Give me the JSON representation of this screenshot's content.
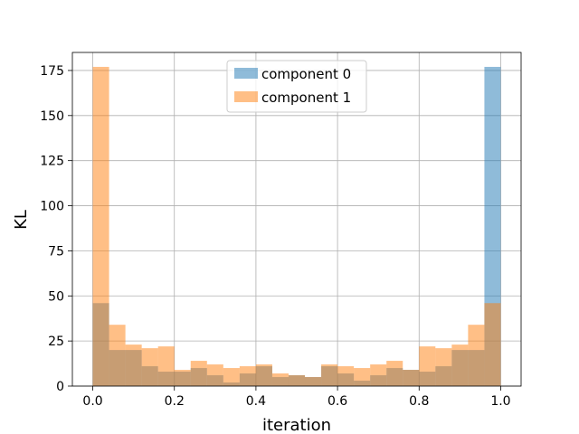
{
  "chart_data": {
    "type": "histogram",
    "xlabel": "iteration",
    "ylabel": "KL",
    "xlim": [
      -0.05,
      1.05
    ],
    "ylim": [
      0,
      185
    ],
    "xticks": [
      "0.0",
      "0.2",
      "0.4",
      "0.6",
      "0.8",
      "1.0"
    ],
    "yticks": [
      "0",
      "25",
      "50",
      "75",
      "100",
      "125",
      "150",
      "175"
    ],
    "grid": true,
    "legend_position": "upper center",
    "bins": 25,
    "bin_range": [
      0,
      1
    ],
    "series": [
      {
        "name": "component 0",
        "color": "#1f77b4",
        "alpha": 0.5,
        "values": [
          46,
          20,
          20,
          11,
          8,
          8,
          10,
          6,
          2,
          7,
          11,
          5,
          6,
          5,
          11,
          7,
          3,
          6,
          10,
          9,
          8,
          11,
          20,
          20,
          177
        ]
      },
      {
        "name": "component 1",
        "color": "#ff7f0e",
        "alpha": 0.5,
        "values": [
          177,
          34,
          23,
          21,
          22,
          9,
          14,
          12,
          10,
          11,
          12,
          7,
          6,
          5,
          12,
          11,
          10,
          12,
          14,
          9,
          22,
          21,
          23,
          34,
          46
        ]
      }
    ]
  }
}
